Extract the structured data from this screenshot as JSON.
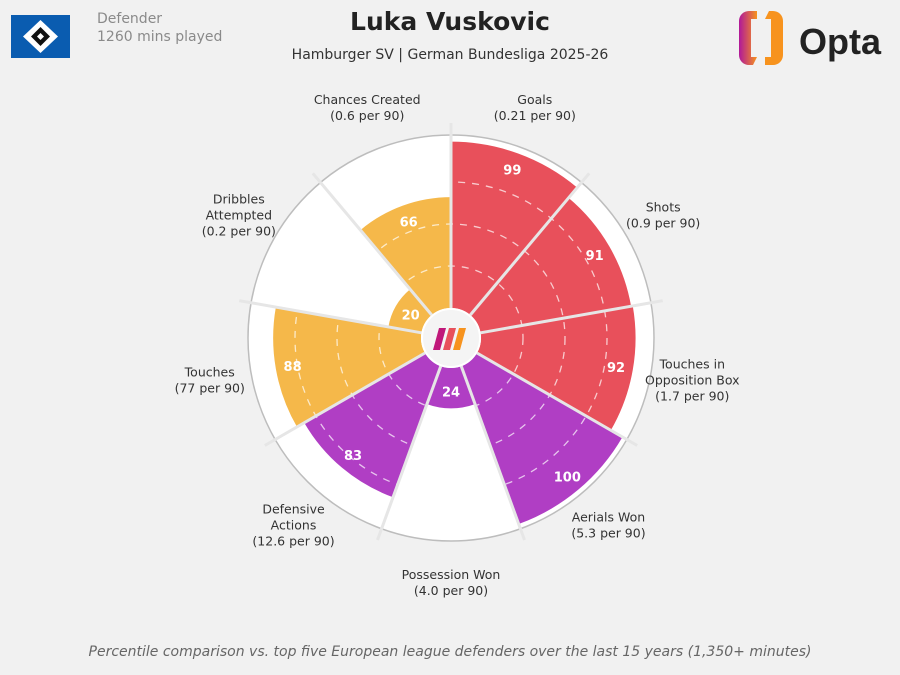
{
  "header": {
    "title": "Luka Vuskovic",
    "subtitle": "Hamburger SV | German Bundesliga 2025-26",
    "position": "Defender",
    "minutes": "1260 mins played",
    "logo_text": "Opta"
  },
  "footer": "Percentile comparison vs. top five European league defenders over the last 15 years (1,350+ minutes)",
  "colors": {
    "attacking": "#e8505b",
    "defending": "#b03ec4",
    "possession": "#f5b84a",
    "background": "#f1f1f1"
  },
  "chart_data": {
    "type": "polar-bar",
    "scale": [
      0,
      100
    ],
    "grid": "dashed rings at 25/50/75",
    "categories": [
      {
        "name": "Goals",
        "sub": "(0.21 per 90)",
        "value": 99,
        "group": "attacking"
      },
      {
        "name": "Shots",
        "sub": "(0.9 per 90)",
        "value": 91,
        "group": "attacking"
      },
      {
        "name": "Touches in|Opposition Box",
        "sub": "(1.7 per 90)",
        "value": 92,
        "group": "attacking"
      },
      {
        "name": "Aerials Won",
        "sub": "(5.3 per 90)",
        "value": 100,
        "group": "defending"
      },
      {
        "name": "Possession Won",
        "sub": "(4.0 per 90)",
        "value": 24,
        "group": "defending"
      },
      {
        "name": "Defensive|Actions",
        "sub": "(12.6 per 90)",
        "value": 83,
        "group": "defending"
      },
      {
        "name": "Touches",
        "sub": "(77 per 90)",
        "value": 88,
        "group": "possession"
      },
      {
        "name": "Dribbles|Attempted",
        "sub": "(0.2 per 90)",
        "value": 20,
        "group": "possession"
      },
      {
        "name": "Chances Created",
        "sub": "(0.6 per 90)",
        "value": 66,
        "group": "possession"
      }
    ]
  }
}
